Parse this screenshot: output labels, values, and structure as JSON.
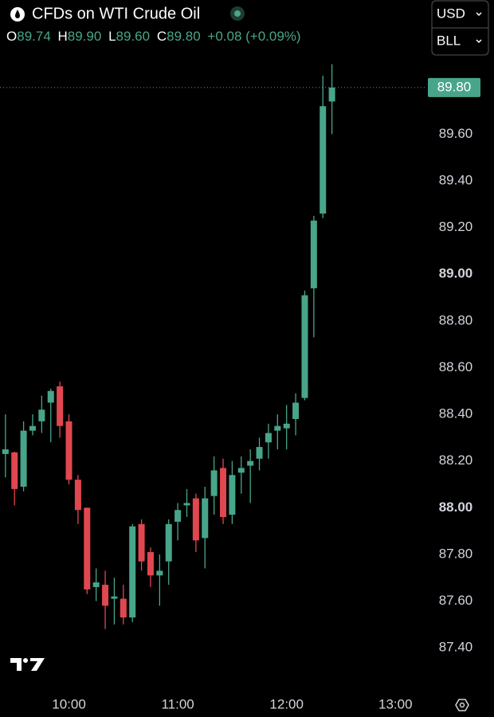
{
  "header": {
    "title": "CFDs on WTI Crude Oil",
    "ohlc": [
      {
        "key": "O",
        "value": "89.74"
      },
      {
        "key": "H",
        "value": "89.90"
      },
      {
        "key": "L",
        "value": "89.60"
      },
      {
        "key": "C",
        "value": "89.80"
      }
    ],
    "change": "+0.08 (+0.09%)",
    "currency": "USD",
    "unit": "BLL"
  },
  "chart_data": {
    "type": "candlestick",
    "x": [
      565,
      570,
      575,
      580,
      585,
      590,
      595,
      600,
      605,
      610,
      615,
      620,
      625,
      630,
      635,
      640,
      645,
      650,
      655,
      660,
      665,
      670,
      675,
      680,
      685,
      690,
      695,
      700,
      705,
      710,
      715,
      720,
      725,
      730,
      735,
      740,
      745
    ],
    "open": [
      88.23,
      88.237,
      88.09,
      88.33,
      88.37,
      88.45,
      88.52,
      88.37,
      88.12,
      88.0,
      87.66,
      87.67,
      87.61,
      87.61,
      87.53,
      87.93,
      87.81,
      87.71,
      87.77,
      87.94,
      88.01,
      88.04,
      87.87,
      88.05,
      88.17,
      87.97,
      88.15,
      88.18,
      88.21,
      88.28,
      88.33,
      88.34,
      88.38,
      88.47,
      88.94,
      89.26,
      89.74
    ],
    "high": [
      88.4,
      88.24,
      88.37,
      88.4,
      88.48,
      88.51,
      88.54,
      88.4,
      88.14,
      88.0,
      87.74,
      87.73,
      87.7,
      87.67,
      87.93,
      87.95,
      87.83,
      87.8,
      87.95,
      88.02,
      88.08,
      88.06,
      88.09,
      88.22,
      88.21,
      88.2,
      88.22,
      88.25,
      88.3,
      88.36,
      88.4,
      88.44,
      88.49,
      88.93,
      89.25,
      89.85,
      89.9
    ],
    "low": [
      88.13,
      88.01,
      88.07,
      88.31,
      88.32,
      88.28,
      88.3,
      88.1,
      87.93,
      87.63,
      87.6,
      87.48,
      87.5,
      87.5,
      87.51,
      87.73,
      87.66,
      87.58,
      87.67,
      87.86,
      87.96,
      87.81,
      87.74,
      87.97,
      87.93,
      87.93,
      88.06,
      88.02,
      88.16,
      88.21,
      88.25,
      88.25,
      88.31,
      88.46,
      88.73,
      89.24,
      89.6
    ],
    "close": [
      88.25,
      88.08,
      88.33,
      88.35,
      88.42,
      88.5,
      88.35,
      88.12,
      87.99,
      87.65,
      87.68,
      87.58,
      87.62,
      87.53,
      87.92,
      87.77,
      87.71,
      87.73,
      87.93,
      87.99,
      88.02,
      87.86,
      88.04,
      88.16,
      87.96,
      88.14,
      88.17,
      88.2,
      88.26,
      88.32,
      88.35,
      88.36,
      88.45,
      88.91,
      89.23,
      89.72,
      89.8
    ],
    "up_color": "#48a58a",
    "down_color": "#e0474f",
    "xlim": [
      562,
      797
    ],
    "xticks": [
      {
        "value": 600,
        "label": "10:00"
      },
      {
        "value": 660,
        "label": "11:00"
      },
      {
        "value": 720,
        "label": "12:00"
      },
      {
        "value": 780,
        "label": "13:00"
      }
    ],
    "ylim": [
      87.24,
      89.97
    ],
    "yticks": [
      {
        "value": 87.4,
        "label": "87.40"
      },
      {
        "value": 87.6,
        "label": "87.60"
      },
      {
        "value": 87.8,
        "label": "87.80"
      },
      {
        "value": 88,
        "label": "88.00"
      },
      {
        "value": 88.2,
        "label": "88.20"
      },
      {
        "value": 88.4,
        "label": "88.40"
      },
      {
        "value": 88.6,
        "label": "88.60"
      },
      {
        "value": 88.8,
        "label": "88.80"
      },
      {
        "value": 89,
        "label": "89.00"
      },
      {
        "value": 89.2,
        "label": "89.20"
      },
      {
        "value": 89.4,
        "label": "89.40"
      },
      {
        "value": 89.6,
        "label": "89.60"
      }
    ],
    "last_price": {
      "value": 89.8,
      "label": "89.80"
    }
  }
}
